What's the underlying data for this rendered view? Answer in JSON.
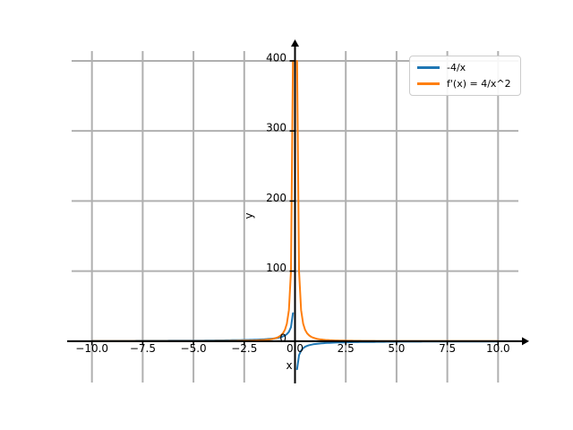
{
  "figure": {
    "background": "#ffffff"
  },
  "chart_data": {
    "type": "line",
    "title": "",
    "xlabel": "x",
    "ylabel": "y",
    "x_range": [
      -10,
      10
    ],
    "sample_step": 0.1,
    "excluded_x": 0,
    "series": [
      {
        "name": "-4/x",
        "expr": "-4/x",
        "color": "#1f77b4",
        "linewidth": 2
      },
      {
        "name": "f'(x) = 4/x^2",
        "expr": "4/x^2",
        "color": "#ff7f0e",
        "linewidth": 2
      }
    ],
    "xlim": [
      -11,
      11
    ],
    "ylim": [
      -59,
      414
    ],
    "x_ticks": {
      "values": [
        -10,
        -7.5,
        -5,
        -2.5,
        0,
        2.5,
        5,
        7.5,
        10
      ],
      "labels": [
        "−10.0",
        "−7.5",
        "−5.0",
        "−2.5",
        "0.0",
        "2.5",
        "5.0",
        "7.5",
        "10.0"
      ]
    },
    "y_ticks": {
      "values": [
        0,
        100,
        200,
        300,
        400
      ],
      "labels": [
        "0",
        "100",
        "200",
        "300",
        "400"
      ]
    },
    "grid": {
      "show": true,
      "color": "#b0b0b0",
      "linewidth": 2
    },
    "axes": {
      "color": "#000000",
      "arrows": true
    },
    "legend": {
      "position": "upper right"
    }
  }
}
